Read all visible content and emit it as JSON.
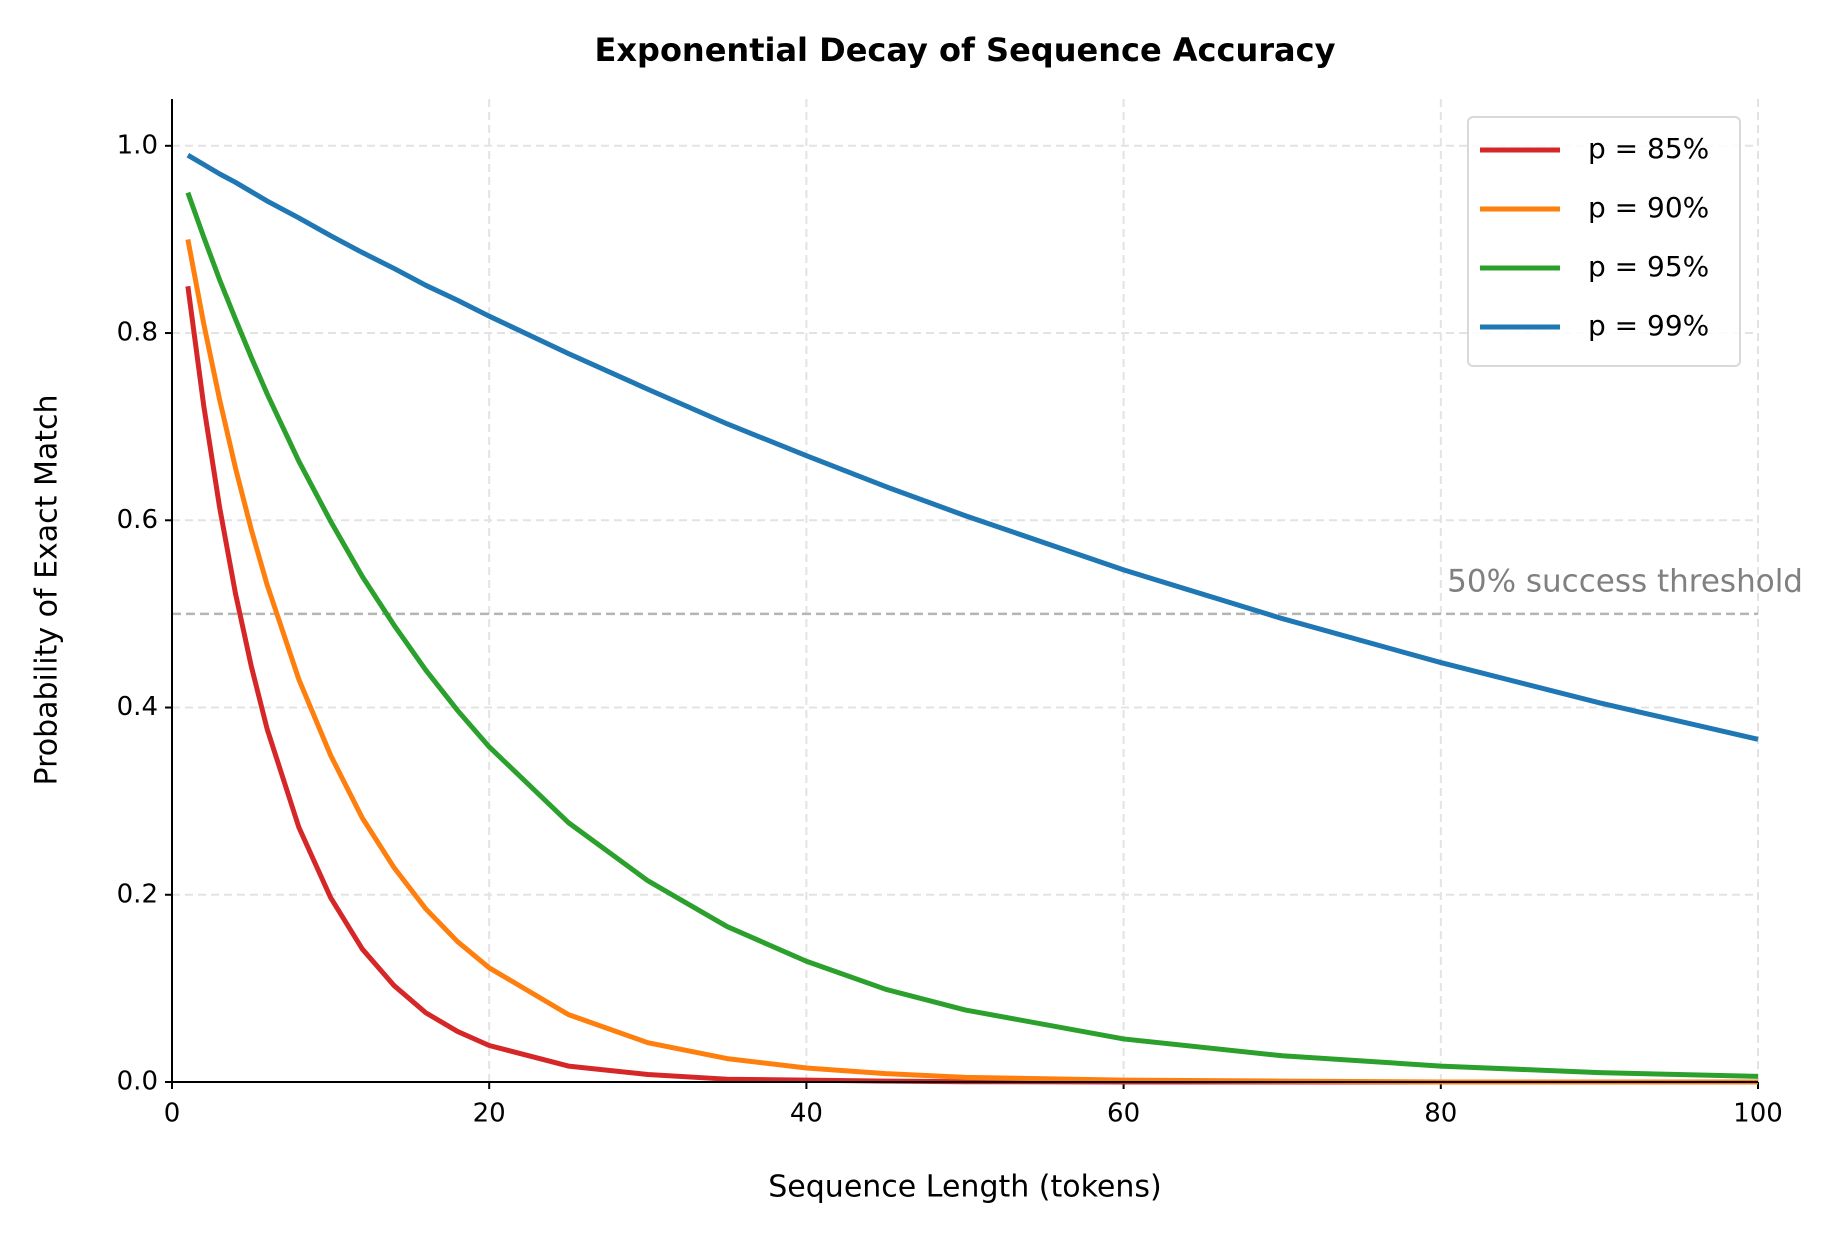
{
  "chart_data": {
    "type": "line",
    "title": "Exponential Decay of Sequence Accuracy",
    "x_label": "Sequence Length (tokens)",
    "y_label": "Probability of Exact Match",
    "x": [
      1,
      2,
      3,
      4,
      5,
      6,
      8,
      10,
      12,
      14,
      16,
      18,
      20,
      25,
      30,
      35,
      40,
      45,
      50,
      60,
      70,
      80,
      90,
      100
    ],
    "series": [
      {
        "name": "p = 85%",
        "color": "#d62728",
        "values": [
          0.85,
          0.7225,
          0.614,
          0.522,
          0.444,
          0.377,
          0.272,
          0.197,
          0.142,
          0.103,
          0.074,
          0.054,
          0.039,
          0.017,
          0.008,
          0.003,
          0.002,
          0.001,
          0.0003,
          0,
          0,
          0,
          0,
          0
        ]
      },
      {
        "name": "p = 90%",
        "color": "#ff7f0e",
        "values": [
          0.9,
          0.81,
          0.729,
          0.656,
          0.59,
          0.531,
          0.43,
          0.349,
          0.282,
          0.229,
          0.185,
          0.15,
          0.122,
          0.072,
          0.042,
          0.025,
          0.015,
          0.009,
          0.005,
          0.002,
          0.001,
          0,
          0,
          0
        ]
      },
      {
        "name": "p = 95%",
        "color": "#2ca02c",
        "values": [
          0.95,
          0.9025,
          0.857,
          0.815,
          0.774,
          0.735,
          0.663,
          0.599,
          0.54,
          0.488,
          0.44,
          0.397,
          0.358,
          0.277,
          0.215,
          0.166,
          0.129,
          0.099,
          0.077,
          0.046,
          0.028,
          0.017,
          0.01,
          0.006
        ]
      },
      {
        "name": "p = 99%",
        "color": "#1f77b4",
        "values": [
          0.99,
          0.98,
          0.97,
          0.961,
          0.951,
          0.941,
          0.923,
          0.904,
          0.886,
          0.869,
          0.851,
          0.835,
          0.818,
          0.778,
          0.74,
          0.703,
          0.669,
          0.636,
          0.605,
          0.547,
          0.495,
          0.448,
          0.405,
          0.366
        ]
      }
    ],
    "threshold": {
      "value": 0.5,
      "label": "50% success threshold"
    },
    "xlim": [
      0,
      100
    ],
    "xticks": [
      0,
      20,
      40,
      60,
      80,
      100
    ],
    "ylim": [
      0,
      1.05
    ],
    "yticks": [
      {
        "value": 0,
        "label": "0.0"
      },
      {
        "value": 0.2,
        "label": "0.2"
      },
      {
        "value": 0.4,
        "label": "0.4"
      },
      {
        "value": 0.6,
        "label": "0.6"
      },
      {
        "value": 0.8,
        "label": "0.8"
      },
      {
        "value": 1,
        "label": "1.0"
      }
    ],
    "grid": true,
    "legend": "upper right"
  }
}
